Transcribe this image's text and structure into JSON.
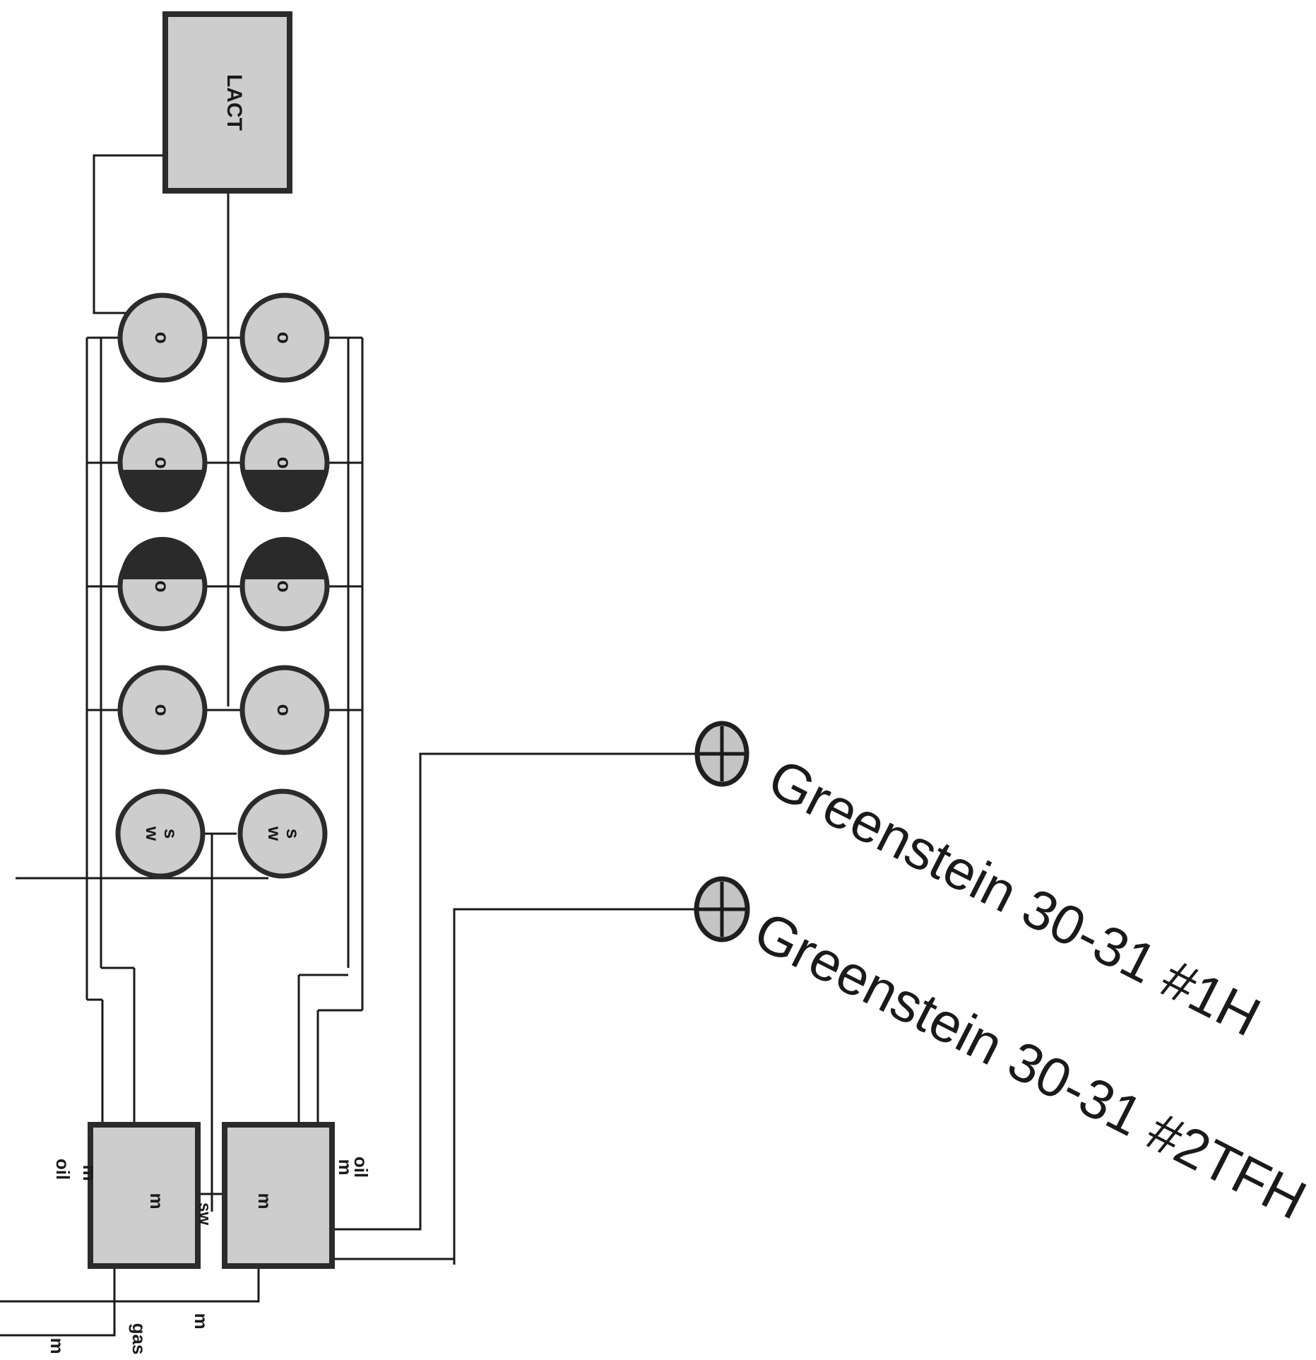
{
  "lact": {
    "label": "LACT"
  },
  "tanks": [
    {
      "id": "t1",
      "label": "o"
    },
    {
      "id": "t2",
      "label": "o"
    },
    {
      "id": "t3",
      "label": "o"
    },
    {
      "id": "t4",
      "label": "o"
    },
    {
      "id": "t5",
      "label": "o"
    },
    {
      "id": "t6",
      "label": "o"
    },
    {
      "id": "t7",
      "label": "o"
    },
    {
      "id": "t8",
      "label": "o"
    },
    {
      "id": "t9",
      "label": "s\nw"
    },
    {
      "id": "t10",
      "label": "s\nw"
    }
  ],
  "separators": {
    "left_meters": [
      "m",
      "m"
    ],
    "right_meters": [
      "m",
      "m"
    ],
    "oil_left": "oil",
    "oil_right": "oil",
    "sw": "sw"
  },
  "bottom": {
    "meter_mid": "m",
    "meter_left": "m",
    "gas": "gas"
  },
  "wells": [
    {
      "name": "Greenstein 30-31 #1H"
    },
    {
      "name": "Greenstein 30-31 #2TFH"
    }
  ]
}
